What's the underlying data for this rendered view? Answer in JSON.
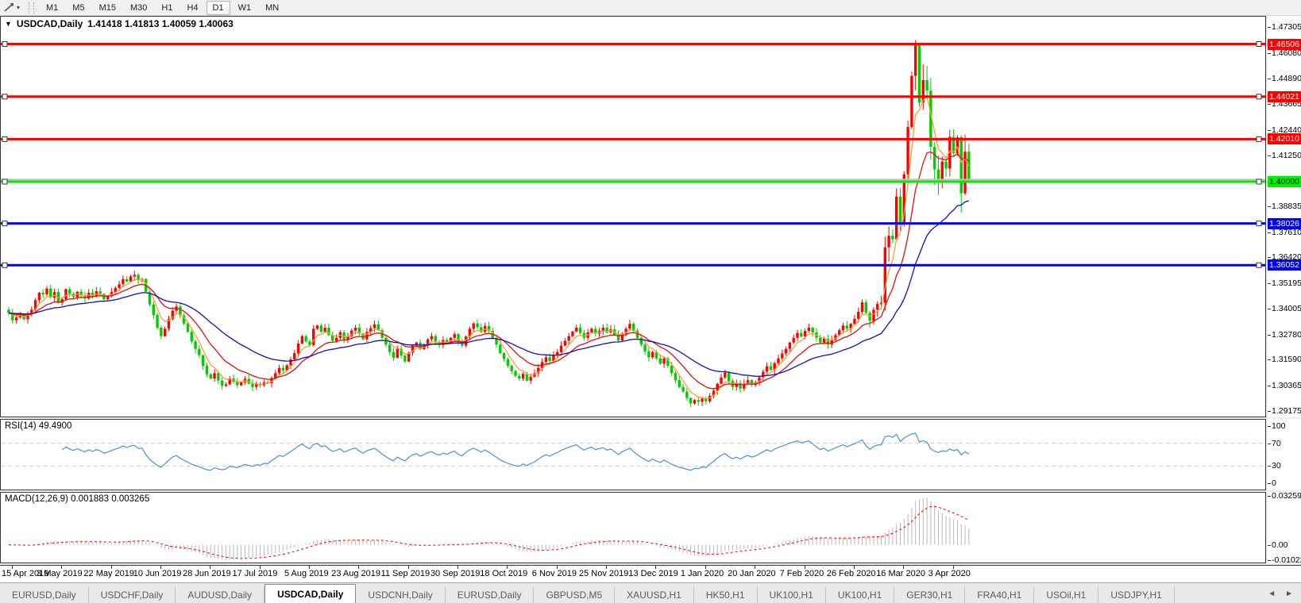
{
  "toolbar": {
    "timeframes": [
      "M1",
      "M5",
      "M15",
      "M30",
      "H1",
      "H4",
      "D1",
      "W1",
      "MN"
    ],
    "active_timeframe": "D1"
  },
  "chart_header": {
    "symbol": "USDCAD,Daily",
    "ohlc": "1.41418 1.41813 1.40059 1.40063"
  },
  "price_axis": {
    "top_value": 1.478,
    "bottom_value": 1.289,
    "ticks": [
      1.47305,
      1.4608,
      1.4489,
      1.43665,
      1.4244,
      1.4125,
      1.38835,
      1.3761,
      1.3642,
      1.35195,
      1.34005,
      1.3278,
      1.3159,
      1.30365,
      1.29175
    ]
  },
  "hlines": [
    {
      "value": 1.46506,
      "color": "#ff0000",
      "label": "1.46506",
      "label_text_color": "#ffffff",
      "width": 3,
      "handles": true
    },
    {
      "value": 1.44021,
      "color": "#ff0000",
      "label": "1.44021",
      "label_text_color": "#ffffff",
      "width": 3,
      "handles": true
    },
    {
      "value": 1.4201,
      "color": "#ff0000",
      "label": "1.42010",
      "label_text_color": "#ffffff",
      "width": 3,
      "handles": true
    },
    {
      "value": 1.401,
      "color": "#c0c0c0",
      "label": "",
      "label_text_color": "",
      "width": 2,
      "handles": false
    },
    {
      "value": 1.4,
      "color": "#00ee00",
      "label": "1.40000",
      "label_text_color": "#000000",
      "width": 3,
      "handles": true
    },
    {
      "value": 1.38026,
      "color": "#0000ff",
      "label": "1.38026",
      "label_text_color": "#ffffff",
      "width": 3,
      "handles": true
    },
    {
      "value": 1.36052,
      "color": "#0000ff",
      "label": "1.36052",
      "label_text_color": "#ffffff",
      "width": 3,
      "handles": true
    }
  ],
  "rsi": {
    "title": "RSI(14) 49.4900",
    "period": 14,
    "line_color": "#4a90d9",
    "level_line_color": "#cccccc",
    "levels": [
      {
        "value": 100,
        "label": "100",
        "dashed": false
      },
      {
        "value": 70,
        "label": "70",
        "dashed": true
      },
      {
        "value": 30,
        "label": "30",
        "dashed": true
      },
      {
        "value": 0,
        "label": "0",
        "dashed": false
      }
    ]
  },
  "macd": {
    "title": "MACD(12,26,9) 0.001883 0.003265",
    "fast": 12,
    "slow": 26,
    "signal": 9,
    "hist_color": "#b8b8b8",
    "signal_color": "#ff0000",
    "axis": {
      "top_value": 0.0346,
      "bottom_value": -0.0118,
      "ticks": [
        {
          "value": 0.032595,
          "label": "0.032595"
        },
        {
          "value": 0,
          "label": "0.00"
        },
        {
          "value": -0.010227,
          "label": "-0.010227"
        }
      ]
    }
  },
  "x_axis": {
    "labels": [
      "15 Apr 2019",
      "3 May 2019",
      "22 May 2019",
      "10 Jun 2019",
      "28 Jun 2019",
      "17 Jul 2019",
      "5 Aug 2019",
      "23 Aug 2019",
      "11 Sep 2019",
      "30 Sep 2019",
      "18 Oct 2019",
      "6 Nov 2019",
      "25 Nov 2019",
      "13 Dec 2019",
      "1 Jan 2020",
      "20 Jan 2020",
      "7 Feb 2020",
      "26 Feb 2020",
      "16 Mar 2020",
      "3 Apr 2020"
    ],
    "label_indices": [
      1,
      14,
      27,
      40,
      53,
      66,
      79,
      92,
      105,
      118,
      131,
      144,
      157,
      170,
      183,
      196,
      209,
      222,
      235,
      248
    ]
  },
  "tabs": {
    "items": [
      {
        "label": "EURUSD,Daily",
        "active": false
      },
      {
        "label": "USDCHF,Daily",
        "active": false
      },
      {
        "label": "AUDUSD,Daily",
        "active": false
      },
      {
        "label": "USDCAD,Daily",
        "active": true
      },
      {
        "label": "USDCNH,Daily",
        "active": false
      },
      {
        "label": "EURUSD,Daily",
        "active": false
      },
      {
        "label": "GBPUSD,M5",
        "active": false
      },
      {
        "label": "XAUUSD,H1",
        "active": false
      },
      {
        "label": "HK50,H1",
        "active": false
      },
      {
        "label": "UK100,H1",
        "active": false
      },
      {
        "label": "UK100,H1",
        "active": false
      },
      {
        "label": "GER30,H1",
        "active": false
      },
      {
        "label": "FRA40,H1",
        "active": false
      },
      {
        "label": "USOil,H1",
        "active": false
      },
      {
        "label": "USDJPY,H1",
        "active": false
      }
    ],
    "scroll_left_icon": "◄",
    "scroll_right_icon": "►"
  },
  "chart_data": {
    "type": "candlestick",
    "symbol": "USDCAD",
    "timeframe": "Daily",
    "bull_color": "#ff0000",
    "bear_color": "#00cc00",
    "first_open": 1.3395,
    "closes": [
      1.338,
      1.3345,
      1.3358,
      1.3372,
      1.335,
      1.3378,
      1.3395,
      1.344,
      1.3475,
      1.3468,
      1.3495,
      1.3452,
      1.3478,
      1.3428,
      1.3445,
      1.3492,
      1.347,
      1.3455,
      1.348,
      1.3462,
      1.3448,
      1.3475,
      1.3458,
      1.3482,
      1.347,
      1.3445,
      1.346,
      1.3478,
      1.3498,
      1.3515,
      1.354,
      1.3528,
      1.3552,
      1.356,
      1.3535,
      1.354,
      1.348,
      1.342,
      1.337,
      1.331,
      1.327,
      1.3305,
      1.335,
      1.339,
      1.341,
      1.3368,
      1.333,
      1.329,
      1.3245,
      1.321,
      1.318,
      1.313,
      1.309,
      1.307,
      1.3095,
      1.306,
      1.3035,
      1.3042,
      1.307,
      1.3055,
      1.3038,
      1.3052,
      1.3068,
      1.3045,
      1.303,
      1.3042,
      1.3038,
      1.3052,
      1.3048,
      1.3072,
      1.3095,
      1.312,
      1.3108,
      1.3132,
      1.316,
      1.319,
      1.3235,
      1.327,
      1.3245,
      1.3228,
      1.3305,
      1.332,
      1.329,
      1.331,
      1.3275,
      1.3248,
      1.3262,
      1.3288,
      1.3252,
      1.327,
      1.3296,
      1.331,
      1.3282,
      1.3255,
      1.329,
      1.3308,
      1.3326,
      1.3298,
      1.3262,
      1.323,
      1.3195,
      1.3168,
      1.321,
      1.3178,
      1.315,
      1.3192,
      1.3225,
      1.324,
      1.3208,
      1.323,
      1.3255,
      1.327,
      1.3242,
      1.3228,
      1.3252,
      1.3238,
      1.3262,
      1.328,
      1.3243,
      1.3225,
      1.3268,
      1.3305,
      1.333,
      1.3312,
      1.329,
      1.3318,
      1.3295,
      1.3262,
      1.323,
      1.319,
      1.3162,
      1.313,
      1.3105,
      1.3082,
      1.307,
      1.3092,
      1.306,
      1.3078,
      1.3095,
      1.312,
      1.3148,
      1.317,
      1.3152,
      1.3178,
      1.3195,
      1.3225,
      1.3248,
      1.327,
      1.3292,
      1.331,
      1.3285,
      1.3262,
      1.3288,
      1.3305,
      1.3282,
      1.3295,
      1.331,
      1.3288,
      1.3302,
      1.3278,
      1.325,
      1.3282,
      1.3305,
      1.3328,
      1.3295,
      1.3262,
      1.323,
      1.3198,
      1.317,
      1.3195,
      1.3165,
      1.314,
      1.3165,
      1.313,
      1.3095,
      1.3062,
      1.303,
      1.3008,
      1.2978,
      1.2952,
      1.2968,
      1.296,
      1.2975,
      1.2962,
      1.2988,
      1.3012,
      1.3045,
      1.3075,
      1.3098,
      1.3058,
      1.303,
      1.3048,
      1.3022,
      1.3045,
      1.3062,
      1.304,
      1.3052,
      1.3075,
      1.3102,
      1.3128,
      1.311,
      1.3142,
      1.3165,
      1.3188,
      1.321,
      1.324,
      1.3262,
      1.3285,
      1.3268,
      1.3295,
      1.331,
      1.3288,
      1.3262,
      1.324,
      1.3258,
      1.323,
      1.3252,
      1.3275,
      1.3298,
      1.332,
      1.3305,
      1.3328,
      1.3352,
      1.3385,
      1.343,
      1.338,
      1.3342,
      1.3395,
      1.3422,
      1.3428,
      1.369,
      1.3745,
      1.3728,
      1.393,
      1.3805,
      1.4035,
      1.4258,
      1.45,
      1.4645,
      1.4375,
      1.448,
      1.443,
      1.4165,
      1.4058,
      1.3998,
      1.4095,
      1.4062,
      1.4212,
      1.4135,
      1.421,
      1.3945,
      1.4142,
      1.40063
    ],
    "wick_overrides": {
      "238": {
        "high": 1.4669
      },
      "250": {
        "low": 1.3855
      },
      "251": {
        "high": 1.4222
      },
      "252": {
        "open": 1.41418,
        "high": 1.41813,
        "low": 1.40059,
        "close": 1.40063
      }
    },
    "volatility_segments": [
      {
        "from": 0,
        "to": 225,
        "v": 0.002
      },
      {
        "from": 226,
        "to": 229,
        "v": 0.0035
      },
      {
        "from": 230,
        "to": 244,
        "v": 0.0085
      },
      {
        "from": 245,
        "to": 252,
        "v": 0.0045
      }
    ],
    "moving_averages": [
      {
        "period": 5,
        "color": "#ff9d2e"
      },
      {
        "period": 13,
        "color": "#e01010"
      },
      {
        "period": 34,
        "color": "#1010c0"
      }
    ],
    "last_candle": {
      "open": 1.41418,
      "high": 1.41813,
      "low": 1.40059,
      "close": 1.40063
    }
  }
}
